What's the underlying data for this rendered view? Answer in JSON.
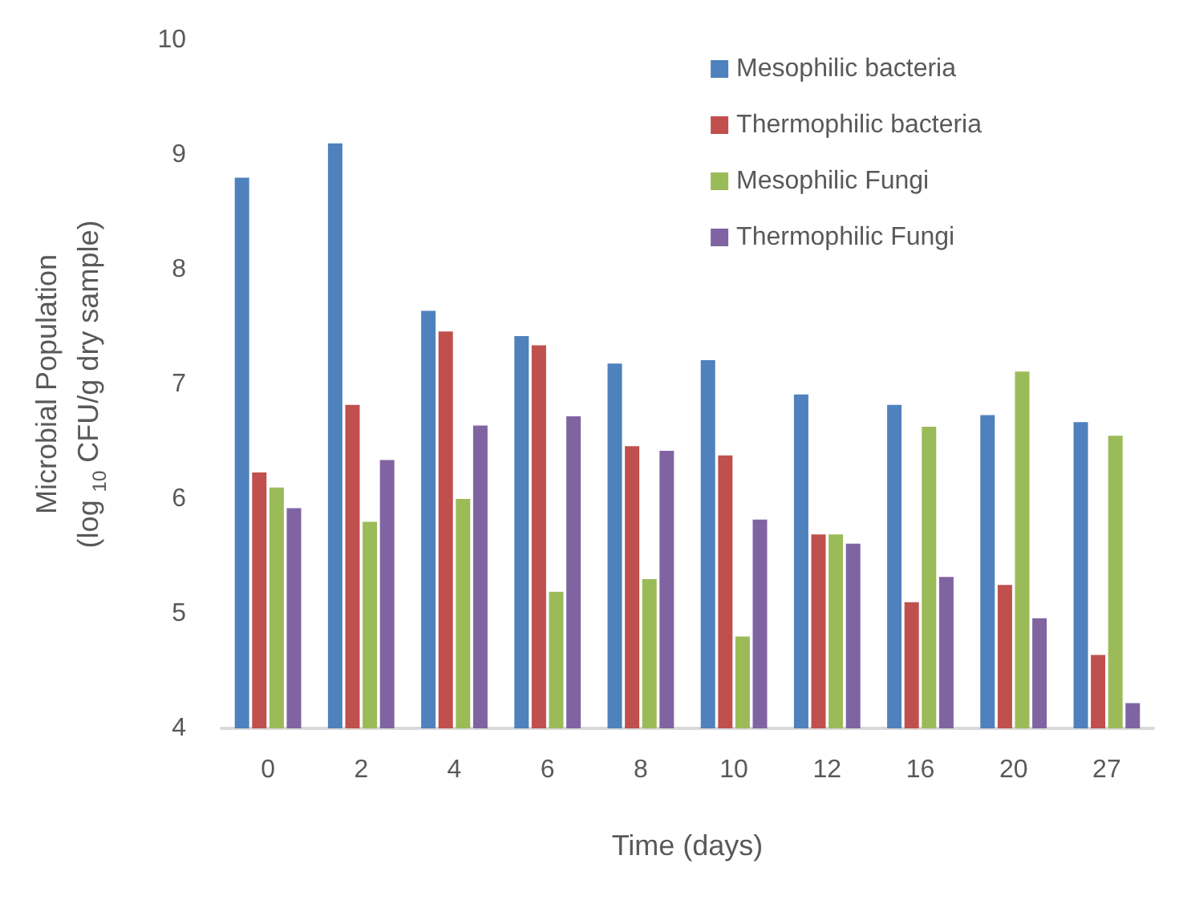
{
  "chart_data": {
    "type": "bar",
    "xlabel": "Time (days)",
    "ylabel": "Microbial Population\n(log$_{10}$ CFU/g dry sample)",
    "categories": [
      "0",
      "2",
      "4",
      "6",
      "8",
      "10",
      "12",
      "16",
      "20",
      "27"
    ],
    "series": [
      {
        "name": "Mesophilic bacteria",
        "color": "#4f81bd",
        "values": [
          8.8,
          9.1,
          7.64,
          7.42,
          7.18,
          7.21,
          6.91,
          6.82,
          6.73,
          6.67
        ]
      },
      {
        "name": "Thermophilic bacteria",
        "color": "#c0504d",
        "values": [
          6.23,
          6.82,
          7.46,
          7.34,
          6.46,
          6.38,
          5.69,
          5.1,
          5.25,
          4.64
        ]
      },
      {
        "name": "Mesophilic Fungi",
        "color": "#9bbb59",
        "values": [
          6.1,
          5.8,
          6.0,
          5.19,
          5.3,
          4.8,
          5.69,
          6.63,
          7.11,
          6.55
        ]
      },
      {
        "name": "Thermophilic Fungi",
        "color": "#8064a2",
        "values": [
          5.92,
          6.34,
          6.64,
          6.72,
          6.42,
          5.82,
          5.61,
          5.32,
          4.96,
          4.22
        ]
      }
    ],
    "ylim": [
      4,
      10
    ],
    "yticks": [
      4,
      5,
      6,
      7,
      8,
      9,
      10
    ],
    "grid": false,
    "legend": "top right"
  }
}
